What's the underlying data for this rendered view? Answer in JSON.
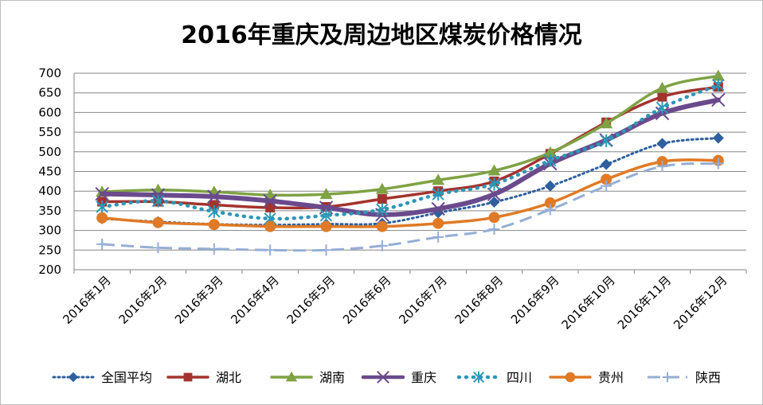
{
  "colors": {
    "全国平均": "#2E5F9E",
    "湖北": "#A3332E",
    "湖南": "#7FA244",
    "重庆": "#6A4A8C",
    "四川": "#2E97B6",
    "贵州": "#E07A26",
    "陕西": "#95AED4",
    "grid": "#868686",
    "axis": "#868686"
  },
  "chart_data": {
    "type": "line",
    "title": "2016年重庆及周边地区煤炭价格情况",
    "xlabel": "",
    "ylabel": "",
    "ylim": [
      200,
      700
    ],
    "yticks": [
      200,
      250,
      300,
      350,
      400,
      450,
      500,
      550,
      600,
      650,
      700
    ],
    "grid": true,
    "legend_position": "bottom",
    "categories": [
      "2016年1月",
      "2016年2月",
      "2016年3月",
      "2016年4月",
      "2016年5月",
      "2016年6月",
      "2016年7月",
      "2016年8月",
      "2016年9月",
      "2016年10月",
      "2016年11月",
      "2016年12月"
    ],
    "series": [
      {
        "name": "全国平均",
        "style": "dotted",
        "marker": "diamond",
        "values": [
          330,
          322,
          316,
          314,
          316,
          318,
          345,
          372,
          413,
          468,
          521,
          535
        ]
      },
      {
        "name": "湖北",
        "style": "solid",
        "marker": "square",
        "values": [
          373,
          373,
          365,
          358,
          360,
          380,
          400,
          425,
          495,
          575,
          640,
          665
        ]
      },
      {
        "name": "湖南",
        "style": "solid",
        "marker": "triangle",
        "values": [
          398,
          403,
          398,
          390,
          392,
          405,
          428,
          452,
          498,
          572,
          662,
          693
        ]
      },
      {
        "name": "重庆",
        "style": "thick",
        "marker": "x",
        "values": [
          393,
          390,
          386,
          375,
          358,
          340,
          355,
          392,
          470,
          530,
          598,
          632
        ]
      },
      {
        "name": "四川",
        "style": "dotted-thick",
        "marker": "asterisk",
        "values": [
          360,
          375,
          348,
          330,
          338,
          353,
          392,
          418,
          478,
          528,
          612,
          670
        ]
      },
      {
        "name": "贵州",
        "style": "solid",
        "marker": "circle",
        "values": [
          332,
          320,
          315,
          310,
          310,
          310,
          318,
          333,
          370,
          430,
          475,
          478
        ]
      },
      {
        "name": "陕西",
        "style": "dashed",
        "marker": "plus",
        "values": [
          265,
          256,
          253,
          250,
          250,
          261,
          283,
          303,
          353,
          413,
          463,
          470
        ]
      }
    ]
  }
}
